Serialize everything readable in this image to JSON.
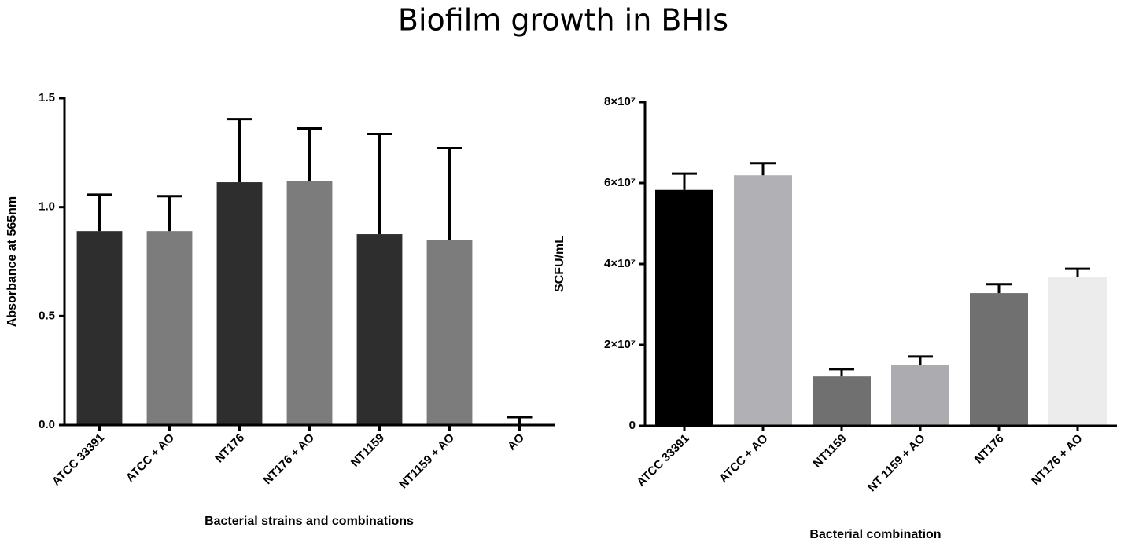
{
  "title": "Biofilm growth in BHIs",
  "chart_data": [
    {
      "type": "bar",
      "y_label": "Absorbance at 565nm",
      "x_label": "Bacterial strains and combinations",
      "categories": [
        "ATCC 33391",
        "ATCC + AO",
        "NT176",
        "NT176 + AO",
        "NT1159",
        "NT1159 + AO",
        "AO"
      ],
      "values": [
        0.89,
        0.89,
        1.114,
        1.121,
        0.876,
        0.851,
        0
      ],
      "errors": [
        0.167,
        0.16,
        0.29,
        0.24,
        0.46,
        0.42,
        0.036
      ],
      "colors": [
        "#2e2e2e",
        "#7c7c7c",
        "#2e2e2e",
        "#7c7c7c",
        "#2e2e2e",
        "#7c7c7c",
        "#2e2e2e"
      ],
      "ylim": [
        0,
        1.5
      ],
      "yticks": [
        {
          "value": 0,
          "label": "0.0"
        },
        0.5,
        {
          "value": 1,
          "label": "1.0"
        },
        1.5
      ]
    },
    {
      "type": "bar",
      "y_label": "SCFU/mL",
      "x_label": "Bacterial combination",
      "categories": [
        "ATCC 33391",
        "ATCC + AO",
        "NT1159",
        "NT 1159  + AO",
        "NT176",
        "NT176  + AO"
      ],
      "values": [
        58300000,
        61900000,
        12200000,
        15000000,
        32800000,
        36700000
      ],
      "errors": [
        4000000,
        3000000,
        1800000,
        2100000,
        2200000,
        2100000
      ],
      "colors": [
        "#000000",
        "#b1b0b5",
        "#707070",
        "#acabb0",
        "#707070",
        "#ececec"
      ],
      "ylim": [
        0,
        80000000
      ],
      "yticks": [
        0,
        {
          "value": 20000000,
          "label": "2×10⁷"
        },
        {
          "value": 40000000,
          "label": "4×10⁷"
        },
        {
          "value": 60000000,
          "label": "6×10⁷"
        },
        {
          "value": 80000000,
          "label": "8×10⁷"
        }
      ]
    }
  ]
}
